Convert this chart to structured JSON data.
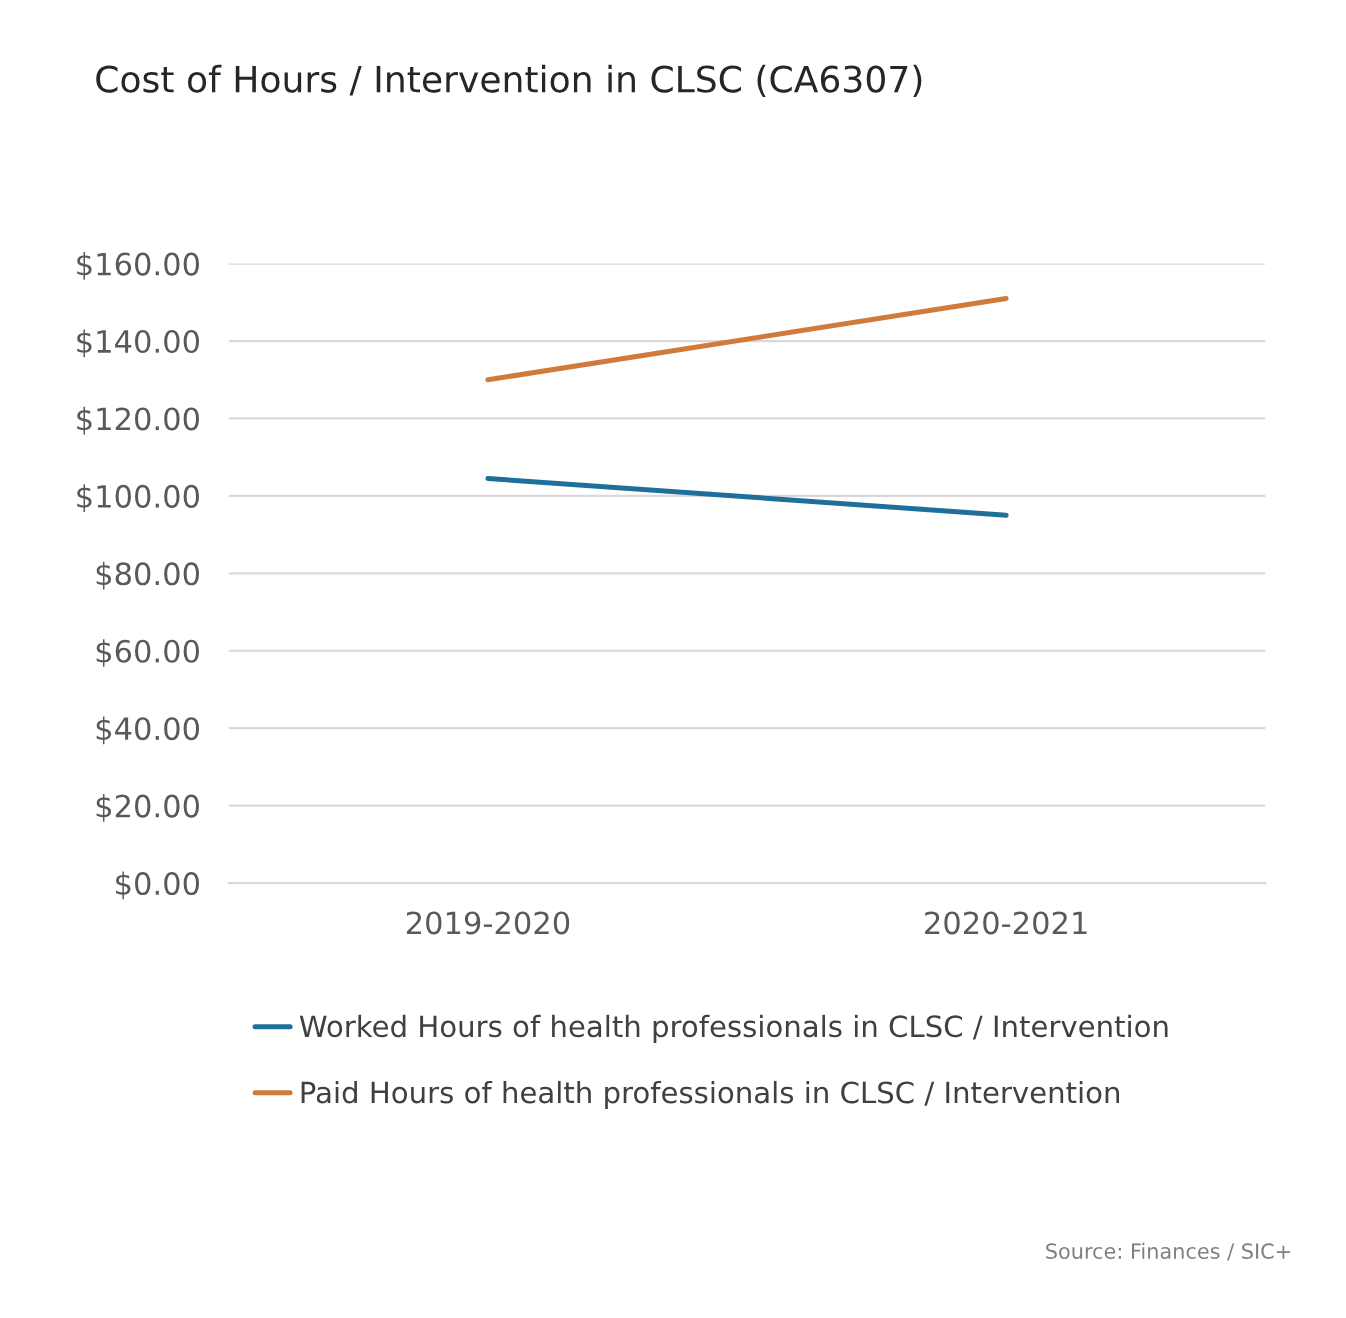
{
  "chart_data": {
    "type": "line",
    "title": "Cost of Hours / Intervention in CLSC (CA6307)",
    "categories": [
      "2019-2020",
      "2020-2021"
    ],
    "series": [
      {
        "name": "Worked Hours of health professionals in CLSC / Intervention",
        "color": "#1f6f9a",
        "values": [
          104.5,
          95
        ]
      },
      {
        "name": "Paid Hours of health professionals in CLSC / Intervention",
        "color": "#d07a3c",
        "values": [
          130,
          151
        ]
      }
    ],
    "ylim": [
      0,
      160
    ],
    "yticks": [
      {
        "value": 0,
        "label": "$0.00"
      },
      {
        "value": 20,
        "label": "$20.00"
      },
      {
        "value": 40,
        "label": "$40.00"
      },
      {
        "value": 60,
        "label": "$60.00"
      },
      {
        "value": 80,
        "label": "$80.00"
      },
      {
        "value": 100,
        "label": "$100.00"
      },
      {
        "value": 120,
        "label": "$120.00"
      },
      {
        "value": 140,
        "label": "$140.00"
      },
      {
        "value": 160,
        "label": "$160.00"
      }
    ],
    "grid": "y",
    "legend": "bottom",
    "annotations": [
      "Source: Finances / SIC+"
    ]
  }
}
